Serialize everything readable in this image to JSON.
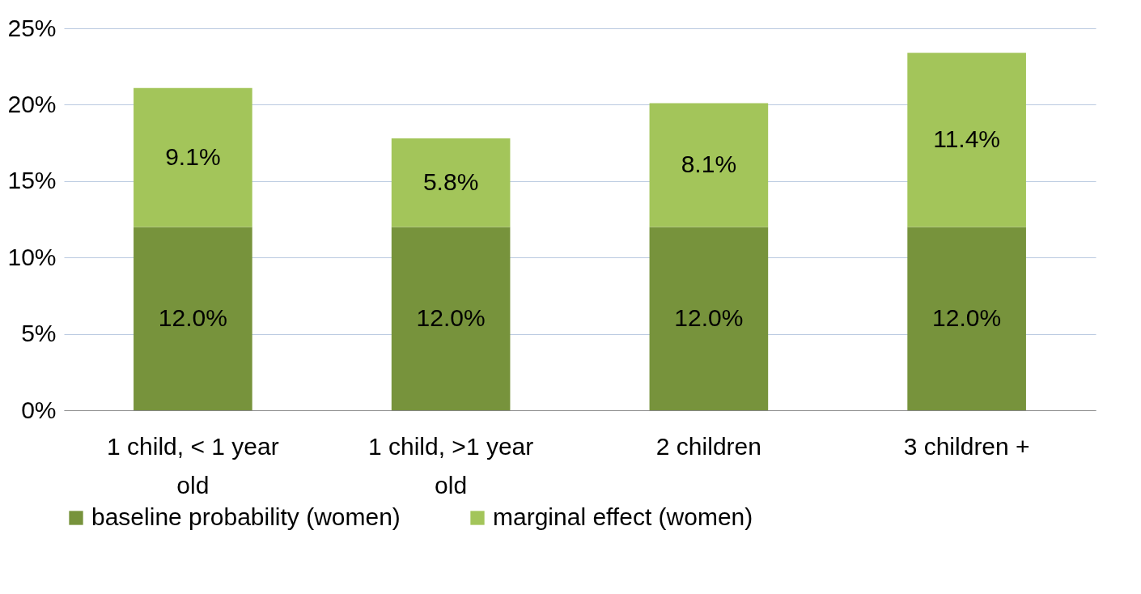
{
  "chart_data": {
    "type": "bar",
    "stacked": true,
    "categories": [
      "1 child, < 1 year old",
      "1 child, >1 year old",
      "2 children",
      "3 children +"
    ],
    "series": [
      {
        "name": "baseline probability (women)",
        "color": "#77933c",
        "values": [
          12.0,
          12.0,
          12.0,
          12.0
        ],
        "value_labels": [
          "12.0%",
          "12.0%",
          "12.0%",
          "12.0%"
        ]
      },
      {
        "name": "marginal effect  (women)",
        "color": "#a3c55a",
        "values": [
          9.1,
          5.8,
          8.1,
          11.4
        ],
        "value_labels": [
          "9.1%",
          "5.8%",
          "8.1%",
          "11.4%"
        ]
      }
    ],
    "ylim": [
      0,
      25
    ],
    "yticks": [
      {
        "value": 0,
        "label": "0%"
      },
      {
        "value": 5,
        "label": "5%"
      },
      {
        "value": 10,
        "label": "10%"
      },
      {
        "value": 15,
        "label": "15%"
      },
      {
        "value": 20,
        "label": "20%"
      },
      {
        "value": 25,
        "label": "25%"
      }
    ],
    "grid": "y",
    "legend": "bottom"
  }
}
